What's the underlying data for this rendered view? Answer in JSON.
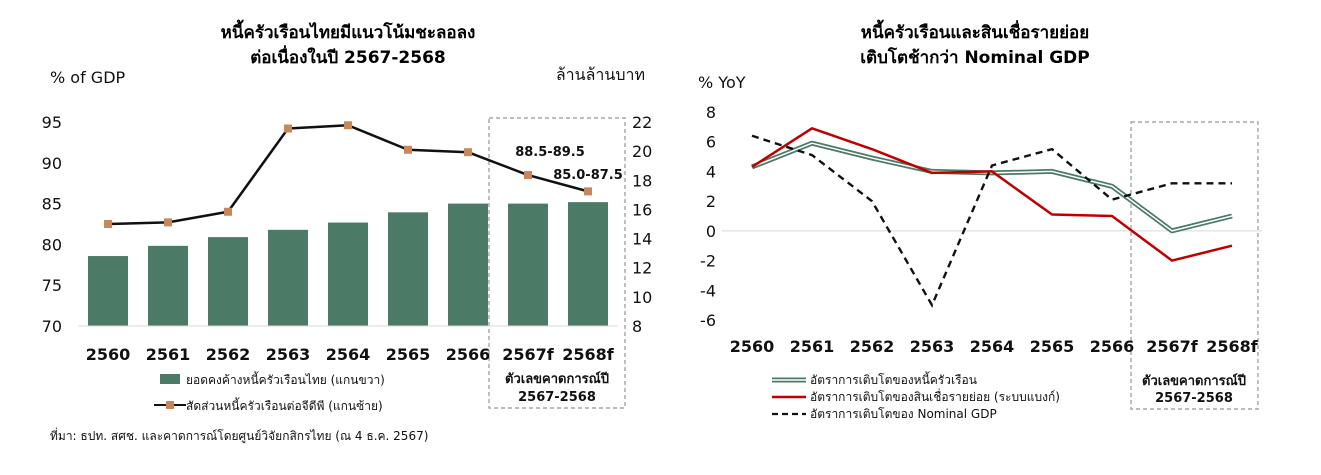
{
  "source_note": "ที่มา: ธปท. สศช. และคาดการณ์โดยศูนย์วิจัยกสิกรไทย (ณ 4 ธ.ค. 2567)",
  "chart_data": [
    {
      "type": "bar",
      "title": "หนี้ครัวเรือนไทยมีแนวโน้มชะลอลง",
      "subtitle": "ต่อเนื่องในปี 2567-2568",
      "ylabel_left": "% of GDP",
      "ylabel_right": "ล้านล้านบาท",
      "categories": [
        "2560",
        "2561",
        "2562",
        "2563",
        "2564",
        "2565",
        "2566",
        "2567f",
        "2568f"
      ],
      "left_axis": {
        "min": 70,
        "max": 95,
        "ticks": [
          70,
          75,
          80,
          85,
          90,
          95
        ]
      },
      "right_axis": {
        "min": 8,
        "max": 22,
        "ticks": [
          8,
          10,
          12,
          14,
          16,
          18,
          20,
          22
        ]
      },
      "series": [
        {
          "name": "ยอดคงค้างหนี้ครัวเรือนไทย (แกนขวา)",
          "kind": "bar",
          "axis": "right",
          "color": "#4b7a66",
          "values": [
            12.8,
            13.5,
            14.1,
            14.6,
            15.1,
            15.8,
            16.4,
            16.4,
            16.5
          ]
        },
        {
          "name": "สัดส่วนหนี้ครัวเรือนต่อจีดีพี (แกนซ้าย)",
          "kind": "line",
          "axis": "left",
          "color": "#111111",
          "marker_color": "#c9865a",
          "values": [
            82.5,
            82.7,
            84.0,
            94.2,
            94.6,
            91.6,
            91.3,
            88.5,
            86.5
          ]
        }
      ],
      "annotations": [
        "88.5-89.5",
        "85.0-87.5"
      ],
      "forecast_box_label": [
        "ตัวเลขคาดการณ์ปี",
        "2567-2568"
      ]
    },
    {
      "type": "line",
      "title": "หนี้ครัวเรือนและสินเชื่อรายย่อย",
      "subtitle": "เติบโตช้ากว่า Nominal GDP",
      "ylabel": "% YoY",
      "categories": [
        "2560",
        "2561",
        "2562",
        "2563",
        "2564",
        "2565",
        "2566",
        "2567f",
        "2568f"
      ],
      "y_axis": {
        "min": -6,
        "max": 8,
        "ticks": [
          8,
          6,
          4,
          2,
          0,
          -2,
          -4,
          -6
        ]
      },
      "series": [
        {
          "name": "อัตราการเติบโตของหนี้ครัวเรือน",
          "color": "#4b7a66",
          "style": "double",
          "values": [
            4.3,
            5.9,
            4.9,
            4.0,
            3.9,
            4.0,
            3.0,
            0.0,
            1.0
          ]
        },
        {
          "name": "อัตราการเติบโตของสินเชื่อรายย่อย (ระบบแบงก์)",
          "color": "#c00000",
          "style": "solid",
          "values": [
            4.3,
            6.9,
            5.5,
            3.9,
            4.0,
            1.1,
            1.0,
            -2.0,
            -1.0
          ]
        },
        {
          "name": "อัตราการเติบโตของ Nominal GDP",
          "color": "#111111",
          "style": "dashed",
          "values": [
            6.4,
            5.1,
            2.0,
            -5.0,
            4.4,
            5.5,
            2.1,
            3.2,
            3.2
          ]
        }
      ],
      "forecast_box_label": [
        "ตัวเลขคาดการณ์ปี",
        "2567-2568"
      ]
    }
  ]
}
